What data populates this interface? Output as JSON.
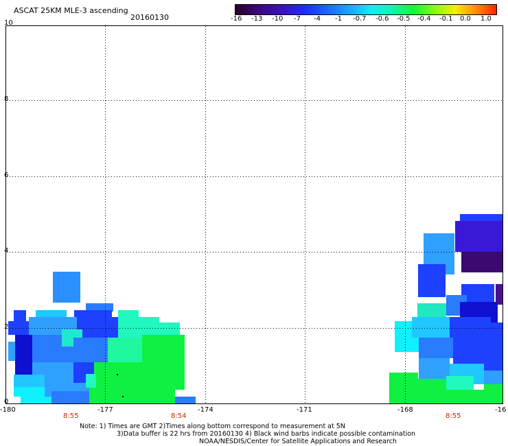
{
  "header": {
    "title": "ASCAT 25KM MLE-3 ascending",
    "date": "20160130"
  },
  "colorbar": {
    "labels": [
      "-16",
      "-13",
      "-10",
      "-7",
      "-4",
      "-1",
      "-0.7",
      "-0.6",
      "-0.5",
      "-0.4",
      "-0.1",
      "0.0",
      "1.0"
    ],
    "colors": [
      "#3a0030",
      "#3b0a8a",
      "#2a10c8",
      "#0b2aff",
      "#1f6cff",
      "#1aa6ff",
      "#18e6f4",
      "#10f4b0",
      "#0ef83a",
      "#6efa10",
      "#f0ee00",
      "#ff8c00",
      "#ff2a00"
    ]
  },
  "axes": {
    "x_labels": [
      "-180",
      "-177",
      "-174",
      "-171",
      "-168",
      "-16"
    ],
    "y_labels": [
      "10",
      "8",
      "6",
      "4",
      "2",
      "0"
    ],
    "time_labels": [
      "8:55",
      "8:54",
      "8:55"
    ]
  },
  "footer": {
    "note1": "Note: 1) Times are GMT 2)Times along bottom correspond to measurement at 5N",
    "note2": "3)Data buffer is 22 hrs from 20160130 4) Black wind barbs indicate possible contamination",
    "credit": "NOAA/NESDIS/Center for Satellite Applications and Research"
  },
  "palette": {
    "navy": "#1010d0",
    "blue": "#1e40ff",
    "mid_blue": "#2a7cff",
    "light_blue": "#30a0ff",
    "sky": "#20c8ff",
    "cyan": "#10f0ff",
    "aqua": "#20f8c0",
    "green": "#10f040",
    "purple": "#4a1090",
    "dark_purple": "#3a0a70",
    "violet": "#3a18d8"
  }
}
